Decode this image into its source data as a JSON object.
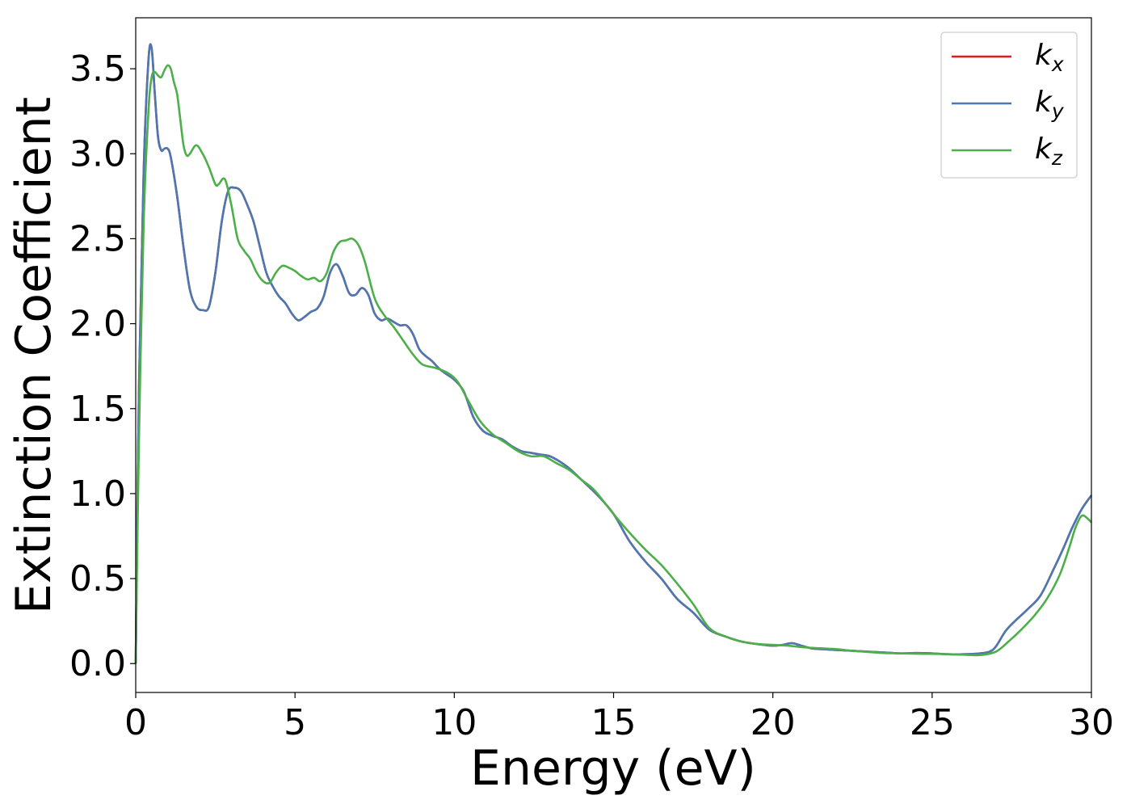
{
  "chart_data": {
    "type": "line",
    "title": "",
    "xlabel": "Energy (eV)",
    "ylabel": "Extinction Coefficient",
    "xlim": [
      0,
      30
    ],
    "ylim": [
      -0.17,
      3.8
    ],
    "xticks": [
      0,
      5,
      10,
      15,
      20,
      25,
      30
    ],
    "xtick_labels": [
      "0",
      "5",
      "10",
      "15",
      "20",
      "25",
      "30"
    ],
    "yticks": [
      0.0,
      0.5,
      1.0,
      1.5,
      2.0,
      2.5,
      3.0,
      3.5
    ],
    "ytick_labels": [
      "0.0",
      "0.5",
      "1.0",
      "1.5",
      "2.0",
      "2.5",
      "3.0",
      "3.5"
    ],
    "grid": false,
    "legend_position": "top-right",
    "series": [
      {
        "name": "kx",
        "label_base": "k",
        "label_sub": "x",
        "color": "#e41a1c",
        "x": [
          0,
          0.1,
          0.25,
          0.4,
          0.5,
          0.6,
          0.7,
          0.8,
          0.9,
          1.0,
          1.1,
          1.3,
          1.5,
          1.7,
          1.9,
          2.1,
          2.3,
          2.5,
          2.7,
          2.9,
          3.1,
          3.3,
          3.5,
          3.7,
          3.9,
          4.1,
          4.3,
          4.5,
          4.7,
          4.9,
          5.1,
          5.3,
          5.5,
          5.7,
          5.9,
          6.1,
          6.3,
          6.5,
          6.7,
          6.9,
          7.1,
          7.3,
          7.5,
          7.7,
          7.9,
          8.1,
          8.3,
          8.5,
          8.7,
          8.9,
          9.1,
          9.3,
          9.5,
          9.7,
          10.0,
          10.3,
          10.6,
          10.9,
          11.2,
          11.5,
          11.8,
          12.1,
          12.4,
          12.7,
          13.0,
          13.3,
          13.6,
          14.0,
          14.5,
          15.0,
          15.5,
          16.0,
          16.5,
          17.0,
          17.5,
          18.0,
          18.5,
          19.0,
          19.5,
          20.0,
          20.3,
          20.6,
          20.9,
          21.2,
          21.5,
          22.0,
          22.5,
          23.0,
          23.5,
          24.0,
          24.5,
          25.0,
          25.5,
          26.0,
          26.5,
          26.8,
          27.0,
          27.3,
          27.6,
          28.0,
          28.4,
          28.8,
          29.1,
          29.4,
          29.7,
          30.0
        ],
        "values": [
          0.0,
          1.6,
          2.9,
          3.55,
          3.62,
          3.35,
          3.1,
          3.02,
          3.03,
          3.03,
          2.98,
          2.75,
          2.45,
          2.2,
          2.1,
          2.08,
          2.1,
          2.3,
          2.6,
          2.78,
          2.8,
          2.78,
          2.7,
          2.6,
          2.45,
          2.3,
          2.22,
          2.16,
          2.12,
          2.06,
          2.02,
          2.04,
          2.07,
          2.09,
          2.16,
          2.3,
          2.35,
          2.28,
          2.18,
          2.17,
          2.21,
          2.17,
          2.06,
          2.02,
          2.03,
          2.01,
          1.99,
          1.99,
          1.94,
          1.85,
          1.81,
          1.78,
          1.74,
          1.71,
          1.67,
          1.6,
          1.45,
          1.37,
          1.34,
          1.32,
          1.28,
          1.25,
          1.24,
          1.23,
          1.22,
          1.19,
          1.15,
          1.08,
          0.99,
          0.88,
          0.72,
          0.6,
          0.5,
          0.38,
          0.3,
          0.2,
          0.16,
          0.13,
          0.115,
          0.105,
          0.11,
          0.12,
          0.105,
          0.09,
          0.085,
          0.08,
          0.075,
          0.07,
          0.065,
          0.06,
          0.062,
          0.06,
          0.055,
          0.055,
          0.06,
          0.07,
          0.1,
          0.19,
          0.25,
          0.32,
          0.4,
          0.55,
          0.67,
          0.8,
          0.91,
          0.99
        ]
      },
      {
        "name": "ky",
        "label_base": "k",
        "label_sub": "y",
        "color": "#4a78b3",
        "x": [
          0,
          0.1,
          0.25,
          0.4,
          0.5,
          0.6,
          0.7,
          0.8,
          0.9,
          1.0,
          1.1,
          1.3,
          1.5,
          1.7,
          1.9,
          2.1,
          2.3,
          2.5,
          2.7,
          2.9,
          3.1,
          3.3,
          3.5,
          3.7,
          3.9,
          4.1,
          4.3,
          4.5,
          4.7,
          4.9,
          5.1,
          5.3,
          5.5,
          5.7,
          5.9,
          6.1,
          6.3,
          6.5,
          6.7,
          6.9,
          7.1,
          7.3,
          7.5,
          7.7,
          7.9,
          8.1,
          8.3,
          8.5,
          8.7,
          8.9,
          9.1,
          9.3,
          9.5,
          9.7,
          10.0,
          10.3,
          10.6,
          10.9,
          11.2,
          11.5,
          11.8,
          12.1,
          12.4,
          12.7,
          13.0,
          13.3,
          13.6,
          14.0,
          14.5,
          15.0,
          15.5,
          16.0,
          16.5,
          17.0,
          17.5,
          18.0,
          18.5,
          19.0,
          19.5,
          20.0,
          20.3,
          20.6,
          20.9,
          21.2,
          21.5,
          22.0,
          22.5,
          23.0,
          23.5,
          24.0,
          24.5,
          25.0,
          25.5,
          26.0,
          26.5,
          26.8,
          27.0,
          27.3,
          27.6,
          28.0,
          28.4,
          28.8,
          29.1,
          29.4,
          29.7,
          30.0
        ],
        "values": [
          0.0,
          1.6,
          2.9,
          3.55,
          3.62,
          3.35,
          3.1,
          3.02,
          3.03,
          3.03,
          2.98,
          2.75,
          2.45,
          2.2,
          2.1,
          2.08,
          2.1,
          2.3,
          2.6,
          2.78,
          2.8,
          2.78,
          2.7,
          2.6,
          2.45,
          2.3,
          2.22,
          2.16,
          2.12,
          2.06,
          2.02,
          2.04,
          2.07,
          2.09,
          2.16,
          2.3,
          2.35,
          2.28,
          2.18,
          2.17,
          2.21,
          2.17,
          2.06,
          2.02,
          2.03,
          2.01,
          1.99,
          1.99,
          1.94,
          1.85,
          1.81,
          1.78,
          1.74,
          1.71,
          1.67,
          1.6,
          1.45,
          1.37,
          1.34,
          1.32,
          1.28,
          1.25,
          1.24,
          1.23,
          1.22,
          1.19,
          1.15,
          1.08,
          0.99,
          0.88,
          0.72,
          0.6,
          0.5,
          0.38,
          0.3,
          0.2,
          0.16,
          0.13,
          0.115,
          0.105,
          0.11,
          0.12,
          0.105,
          0.09,
          0.085,
          0.08,
          0.075,
          0.07,
          0.065,
          0.06,
          0.062,
          0.06,
          0.055,
          0.055,
          0.06,
          0.07,
          0.1,
          0.19,
          0.25,
          0.32,
          0.4,
          0.55,
          0.67,
          0.8,
          0.91,
          0.99
        ]
      },
      {
        "name": "kz",
        "label_base": "k",
        "label_sub": "z",
        "color": "#4daf4a",
        "x": [
          0,
          0.1,
          0.25,
          0.4,
          0.5,
          0.6,
          0.7,
          0.8,
          0.9,
          1.0,
          1.1,
          1.2,
          1.3,
          1.4,
          1.5,
          1.6,
          1.7,
          1.9,
          2.1,
          2.3,
          2.5,
          2.6,
          2.8,
          3.0,
          3.2,
          3.4,
          3.6,
          3.8,
          4.0,
          4.2,
          4.4,
          4.6,
          4.8,
          5.0,
          5.2,
          5.4,
          5.6,
          5.8,
          6.0,
          6.2,
          6.4,
          6.6,
          6.8,
          7.0,
          7.2,
          7.5,
          7.8,
          8.1,
          8.4,
          8.7,
          9.0,
          9.4,
          9.8,
          10.1,
          10.4,
          10.8,
          11.2,
          11.6,
          12.0,
          12.4,
          12.8,
          13.2,
          13.6,
          14.0,
          14.4,
          15.0,
          15.5,
          16.0,
          16.5,
          17.0,
          17.5,
          18.0,
          18.5,
          19.0,
          19.5,
          20.0,
          20.5,
          21.0,
          21.5,
          22.0,
          22.5,
          23.0,
          23.5,
          24.0,
          24.5,
          25.0,
          25.5,
          26.0,
          26.5,
          27.0,
          27.4,
          27.8,
          28.2,
          28.6,
          29.0,
          29.3,
          29.5,
          29.7,
          29.9,
          30.0
        ],
        "values": [
          0.0,
          1.3,
          2.6,
          3.25,
          3.45,
          3.48,
          3.46,
          3.45,
          3.49,
          3.52,
          3.5,
          3.42,
          3.35,
          3.2,
          3.05,
          2.99,
          3.0,
          3.05,
          3.0,
          2.92,
          2.82,
          2.82,
          2.85,
          2.7,
          2.5,
          2.43,
          2.38,
          2.3,
          2.25,
          2.24,
          2.3,
          2.34,
          2.33,
          2.31,
          2.28,
          2.26,
          2.27,
          2.25,
          2.3,
          2.42,
          2.48,
          2.49,
          2.5,
          2.46,
          2.36,
          2.15,
          2.05,
          1.98,
          1.9,
          1.82,
          1.76,
          1.74,
          1.71,
          1.66,
          1.56,
          1.43,
          1.35,
          1.3,
          1.25,
          1.22,
          1.22,
          1.18,
          1.14,
          1.08,
          1.02,
          0.88,
          0.77,
          0.67,
          0.58,
          0.47,
          0.35,
          0.21,
          0.16,
          0.13,
          0.115,
          0.11,
          0.105,
          0.095,
          0.09,
          0.085,
          0.075,
          0.068,
          0.062,
          0.06,
          0.058,
          0.057,
          0.055,
          0.052,
          0.05,
          0.07,
          0.13,
          0.2,
          0.28,
          0.38,
          0.52,
          0.68,
          0.8,
          0.87,
          0.85,
          0.83
        ]
      }
    ]
  }
}
